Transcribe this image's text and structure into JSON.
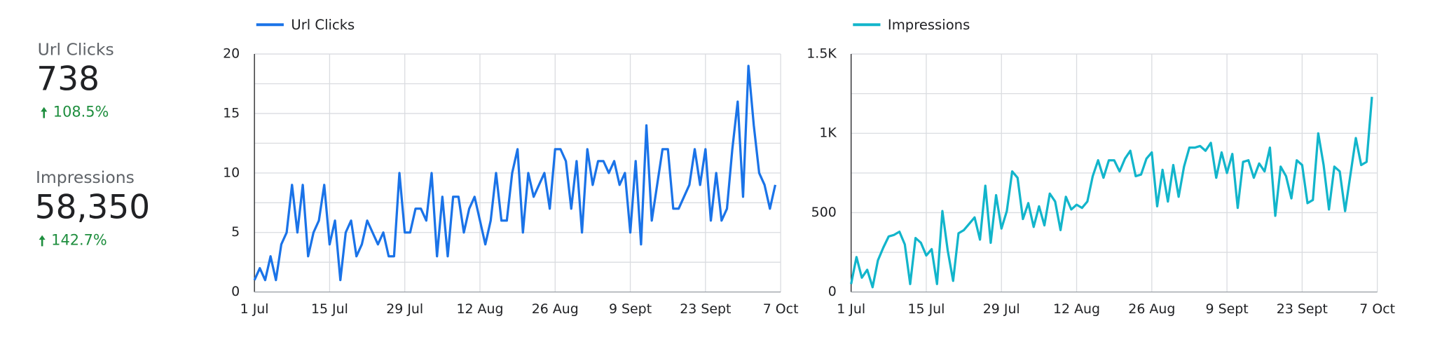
{
  "scorecards": [
    {
      "label": "Url Clicks",
      "value": "738",
      "change": "108.5%"
    },
    {
      "label": "Impressions",
      "value": "58,350",
      "change": "142.7%"
    }
  ],
  "chart_data": [
    {
      "type": "line",
      "xticks": [
        {
          "value": 0,
          "label": "1 Jul"
        },
        {
          "value": 14,
          "label": "15 Jul"
        },
        {
          "value": 28,
          "label": "29 Jul"
        },
        {
          "value": 42,
          "label": "12 Aug"
        },
        {
          "value": 56,
          "label": "26 Aug"
        },
        {
          "value": 70,
          "label": "9 Sept"
        },
        {
          "value": 84,
          "label": "23 Sept"
        },
        {
          "value": 98,
          "label": "7 Oct"
        }
      ],
      "xlim": [
        0,
        98
      ],
      "x": [
        0,
        1,
        2,
        3,
        4,
        5,
        6,
        7,
        8,
        9,
        10,
        11,
        12,
        13,
        14,
        15,
        16,
        17,
        18,
        19,
        20,
        21,
        22,
        23,
        24,
        25,
        26,
        27,
        28,
        29,
        30,
        31,
        32,
        33,
        34,
        35,
        36,
        37,
        38,
        39,
        40,
        41,
        42,
        43,
        44,
        45,
        46,
        47,
        48,
        49,
        50,
        51,
        52,
        53,
        54,
        55,
        56,
        57,
        58,
        59,
        60,
        61,
        62,
        63,
        64,
        65,
        66,
        67,
        68,
        69,
        70,
        71,
        72,
        73,
        74,
        75,
        76,
        77,
        78,
        79,
        80,
        81,
        82,
        83,
        84,
        85,
        86,
        87,
        88,
        89,
        90,
        91,
        92,
        93,
        94,
        95,
        96,
        97
      ],
      "series": [
        {
          "name": "Url Clicks",
          "color": "#1a73e8",
          "values": [
            1,
            2,
            1,
            3,
            1,
            4,
            5,
            9,
            5,
            9,
            3,
            5,
            6,
            9,
            4,
            6,
            1,
            5,
            6,
            3,
            4,
            6,
            5,
            4,
            5,
            3,
            3,
            10,
            5,
            5,
            7,
            7,
            6,
            10,
            3,
            8,
            3,
            8,
            8,
            5,
            7,
            8,
            6,
            4,
            6,
            10,
            6,
            6,
            10,
            12,
            5,
            10,
            8,
            9,
            10,
            7,
            12,
            12,
            11,
            7,
            11,
            5,
            12,
            9,
            11,
            11,
            10,
            11,
            9,
            10,
            5,
            11,
            4,
            14,
            6,
            9,
            12,
            12,
            7,
            7,
            8,
            9,
            12,
            9,
            12,
            6,
            10,
            6,
            7,
            12,
            16,
            8,
            19,
            14,
            10,
            9,
            7,
            9
          ]
        }
      ],
      "ylim": [
        0,
        20
      ],
      "yticks": [
        0,
        5,
        10,
        15,
        20
      ],
      "minor_yticks": [
        2.5,
        7.5,
        12.5,
        17.5
      ],
      "grid": true,
      "legend": "top-left"
    },
    {
      "type": "line",
      "xticks": [
        {
          "value": 0,
          "label": "1 Jul"
        },
        {
          "value": 14,
          "label": "15 Jul"
        },
        {
          "value": 28,
          "label": "29 Jul"
        },
        {
          "value": 42,
          "label": "12 Aug"
        },
        {
          "value": 56,
          "label": "26 Aug"
        },
        {
          "value": 70,
          "label": "9 Sept"
        },
        {
          "value": 84,
          "label": "23 Sept"
        },
        {
          "value": 98,
          "label": "7 Oct"
        }
      ],
      "xlim": [
        0,
        98
      ],
      "x": [
        0,
        1,
        2,
        3,
        4,
        5,
        6,
        7,
        8,
        9,
        10,
        11,
        12,
        13,
        14,
        15,
        16,
        17,
        18,
        19,
        20,
        21,
        22,
        23,
        24,
        25,
        26,
        27,
        28,
        29,
        30,
        31,
        32,
        33,
        34,
        35,
        36,
        37,
        38,
        39,
        40,
        41,
        42,
        43,
        44,
        45,
        46,
        47,
        48,
        49,
        50,
        51,
        52,
        53,
        54,
        55,
        56,
        57,
        58,
        59,
        60,
        61,
        62,
        63,
        64,
        65,
        66,
        67,
        68,
        69,
        70,
        71,
        72,
        73,
        74,
        75,
        76,
        77,
        78,
        79,
        80,
        81,
        82,
        83,
        84,
        85,
        86,
        87,
        88,
        89,
        90,
        91,
        92,
        93,
        94,
        95,
        96,
        97
      ],
      "series": [
        {
          "name": "Impressions",
          "color": "#12b5cb",
          "values": [
            50,
            220,
            90,
            140,
            30,
            200,
            280,
            350,
            360,
            380,
            300,
            50,
            340,
            310,
            230,
            270,
            50,
            510,
            260,
            70,
            370,
            390,
            430,
            470,
            330,
            670,
            310,
            610,
            400,
            510,
            760,
            720,
            460,
            560,
            410,
            540,
            420,
            620,
            570,
            390,
            600,
            520,
            550,
            530,
            570,
            730,
            830,
            720,
            830,
            830,
            760,
            840,
            890,
            730,
            740,
            840,
            880,
            540,
            770,
            570,
            800,
            600,
            790,
            910,
            910,
            920,
            890,
            940,
            720,
            880,
            750,
            870,
            530,
            820,
            830,
            720,
            810,
            760,
            910,
            480,
            790,
            730,
            590,
            830,
            800,
            560,
            580,
            1000,
            800,
            520,
            790,
            760,
            510,
            740,
            970,
            800,
            820,
            1230
          ]
        }
      ],
      "ylim": [
        0,
        1500
      ],
      "yticks": [
        0,
        500,
        {
          "value": 1000,
          "label": "1K"
        },
        {
          "value": 1500,
          "label": "1.5K"
        }
      ],
      "minor_yticks": [
        250,
        750,
        1250
      ],
      "grid": true,
      "legend": "top-left"
    }
  ]
}
